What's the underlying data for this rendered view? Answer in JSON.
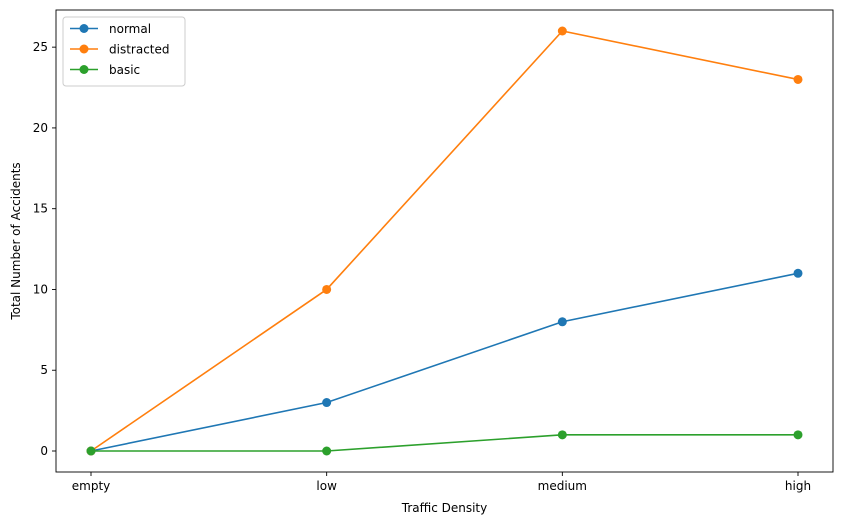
{
  "chart_data": {
    "type": "line",
    "title": "",
    "xlabel": "Traffic Density",
    "ylabel": "Total Number of Accidents",
    "categories": [
      "empty",
      "low",
      "medium",
      "high"
    ],
    "ylim": [
      -1.3,
      27.3
    ],
    "yticks": [
      0,
      5,
      10,
      15,
      20,
      25
    ],
    "grid": false,
    "legend": "top-left",
    "markers": true,
    "series": [
      {
        "name": "normal",
        "color": "#1f77b4",
        "values": [
          0,
          3,
          8,
          11
        ]
      },
      {
        "name": "distracted",
        "color": "#ff7f0e",
        "values": [
          0,
          10,
          26,
          23
        ]
      },
      {
        "name": "basic",
        "color": "#2ca02c",
        "values": [
          0,
          0,
          1,
          1
        ]
      }
    ]
  }
}
